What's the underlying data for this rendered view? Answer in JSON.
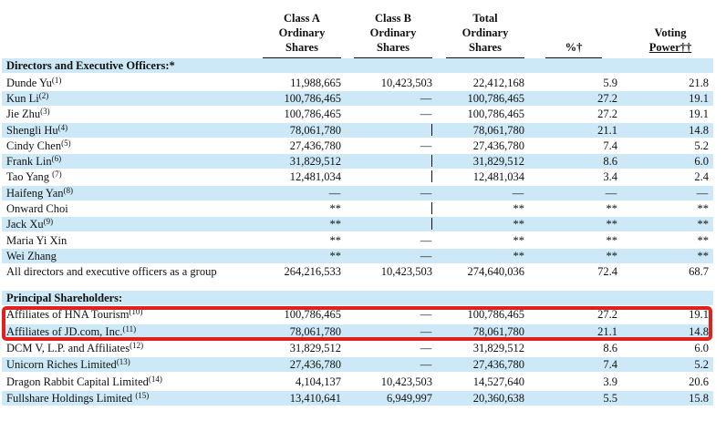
{
  "columns": {
    "class_a": [
      "Class A",
      "Ordinary",
      "Shares"
    ],
    "class_b": [
      "Class B",
      "Ordinary",
      "Shares"
    ],
    "total": [
      "Total",
      "Ordinary",
      "Shares"
    ],
    "pct": "%†",
    "voting": [
      "Voting",
      "Power††"
    ]
  },
  "sections": [
    {
      "title": "Directors and Executive Officers:*",
      "rows": [
        {
          "name": "Dunde Yu",
          "note": "(1)",
          "class_a": "11,988,665",
          "class_b": "10,423,503",
          "total": "22,412,168",
          "pct": "5.9",
          "voting": "21.8"
        },
        {
          "name": "Kun Li",
          "note": "(2)",
          "class_a": "100,786,465",
          "class_b": "—",
          "total": "100,786,465",
          "pct": "27.2",
          "voting": "19.1"
        },
        {
          "name": "Jie Zhu",
          "note": "(3)",
          "class_a": "100,786,465",
          "class_b": "—",
          "total": "100,786,465",
          "pct": "27.2",
          "voting": "19.1"
        },
        {
          "name": "Shengli Hu",
          "note": "(4)",
          "class_a": "78,061,780",
          "class_b": "|",
          "total": "78,061,780",
          "pct": "21.1",
          "voting": "14.8"
        },
        {
          "name": "Cindy Chen",
          "note": "(5)",
          "class_a": "27,436,780",
          "class_b": "—",
          "total": "27,436,780",
          "pct": "7.4",
          "voting": "5.2"
        },
        {
          "name": "Frank Lin",
          "note": "(6)",
          "class_a": "31,829,512",
          "class_b": "|",
          "total": "31,829,512",
          "pct": "8.6",
          "voting": "6.0"
        },
        {
          "name": "Tao Yang ",
          "note": "(7)",
          "class_a": "12,481,034",
          "class_b": "|",
          "total": "12,481,034",
          "pct": "3.4",
          "voting": "2.4"
        },
        {
          "name": "Haifeng Yan",
          "note": "(8)",
          "class_a": "—",
          "class_b": "—",
          "total": "—",
          "pct": "—",
          "voting": "—"
        },
        {
          "name": "Onward Choi",
          "note": "",
          "class_a": "**",
          "class_b": "|",
          "total": "**",
          "pct": "**",
          "voting": "**"
        },
        {
          "name": "Jack Xu",
          "note": "(9)",
          "class_a": "**",
          "class_b": "|",
          "total": "**",
          "pct": "**",
          "voting": "**"
        },
        {
          "name": "Maria Yi Xin",
          "note": "",
          "class_a": "**",
          "class_b": "—",
          "total": "**",
          "pct": "**",
          "voting": "**"
        },
        {
          "name": "Wei Zhang",
          "note": "",
          "class_a": "**",
          "class_b": "—",
          "total": "**",
          "pct": "**",
          "voting": "**"
        },
        {
          "name": "All directors and executive officers as a group",
          "note": "",
          "class_a": "264,216,533",
          "class_b": "10,423,503",
          "total": "274,640,036",
          "pct": "72.4",
          "voting": "68.7"
        }
      ]
    },
    {
      "title": "Principal Shareholders:",
      "rows": [
        {
          "name": "Affiliates of HNA Tourism",
          "note": "(10)",
          "class_a": "100,786,465",
          "class_b": "—",
          "total": "100,786,465",
          "pct": "27.2",
          "voting": "19.1"
        },
        {
          "name": "Affiliates of JD.com, Inc.",
          "note": "(11)",
          "class_a": "78,061,780",
          "class_b": "—",
          "total": "78,061,780",
          "pct": "21.1",
          "voting": "14.8"
        },
        {
          "name": "DCM V, L.P. and Affiliates",
          "note": "(12)",
          "class_a": "31,829,512",
          "class_b": "—",
          "total": "31,829,512",
          "pct": "8.6",
          "voting": "6.0"
        },
        {
          "name": "Unicorn Riches Limited",
          "note": "(13)",
          "class_a": "27,436,780",
          "class_b": "—",
          "total": "27,436,780",
          "pct": "7.4",
          "voting": "5.2"
        },
        {
          "name": "Dragon Rabbit Capital Limited",
          "note": "(14)",
          "class_a": "4,104,137",
          "class_b": "10,423,503",
          "total": "14,527,640",
          "pct": "3.9",
          "voting": "20.6"
        },
        {
          "name": "Fullshare Holdings Limited ",
          "note": "(15)",
          "class_a": "13,410,641",
          "class_b": "6,949,997",
          "total": "20,360,638",
          "pct": "5.5",
          "voting": "15.8"
        }
      ]
    }
  ],
  "highlight_color": "#e0211d",
  "shade_color": "#cde8f6"
}
